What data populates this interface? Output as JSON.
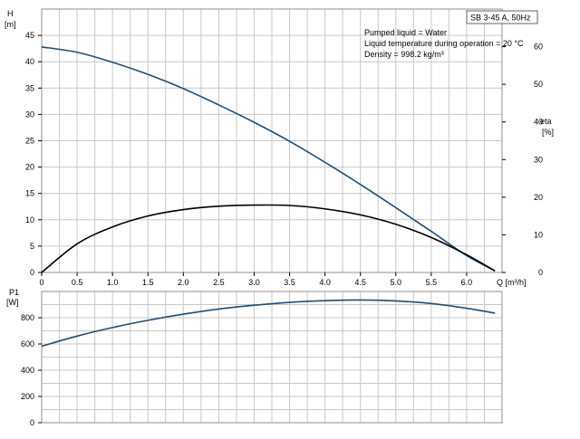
{
  "model_label": "SB 3-45 A, 50Hz",
  "info": {
    "line1": "Pumped liquid = Water",
    "line2": "Liquid temperature during operation = 20 °C",
    "line3": "Density = 998.2 kg/m³"
  },
  "colors": {
    "curve_blue": "#1f4e79",
    "curve_black": "#000000",
    "grid": "#c8c8c8"
  },
  "chart_data": [
    {
      "type": "line",
      "x_label": "Q [m³/h]",
      "y_label_left_line1": "H",
      "y_label_left_line2": "[m]",
      "y_label_right_line1": "eta",
      "y_label_right_line2": "[%]",
      "xlim": [
        0,
        6.5
      ],
      "ylim_left": [
        0,
        50
      ],
      "ylim_right": [
        0,
        70
      ],
      "x_ticks": [
        "0",
        "0.5",
        "1.0",
        "1.5",
        "2.0",
        "2.5",
        "3.0",
        "3.5",
        "4.0",
        "4.5",
        "5.0",
        "5.5",
        "6.0"
      ],
      "y_ticks_left": [
        "0",
        "5",
        "10",
        "15",
        "20",
        "25",
        "30",
        "35",
        "40",
        "45"
      ],
      "y_ticks_right": [
        "0",
        "10",
        "20",
        "30",
        "40",
        "50",
        "60"
      ],
      "grid": true,
      "series": [
        {
          "name": "",
          "axis": "left",
          "color": "#1f4e79",
          "x": [
            0,
            0.5,
            1.0,
            1.5,
            2.0,
            2.5,
            3.0,
            3.5,
            4.0,
            4.5,
            5.0,
            5.5,
            6.0,
            6.4
          ],
          "y": [
            42.8,
            41.8,
            39.9,
            37.6,
            34.9,
            31.8,
            28.5,
            24.9,
            20.9,
            16.7,
            12.3,
            7.8,
            3.2,
            0.3
          ]
        },
        {
          "name": "",
          "axis": "right",
          "color": "#000000",
          "x": [
            0,
            0.5,
            1.0,
            1.5,
            2.0,
            2.5,
            3.0,
            3.5,
            4.0,
            4.5,
            5.0,
            5.5,
            6.0,
            6.4
          ],
          "y": [
            0,
            7.6,
            12.1,
            15.0,
            16.7,
            17.6,
            17.9,
            17.8,
            16.9,
            15.3,
            12.8,
            9.3,
            4.7,
            0.4
          ]
        }
      ]
    },
    {
      "type": "line",
      "x_label": "",
      "y_label_left_line1": "P1",
      "y_label_left_line2": "[W]",
      "xlim": [
        0,
        6.5
      ],
      "ylim_left": [
        0,
        1000
      ],
      "y_ticks_left": [
        "0",
        "200",
        "400",
        "600",
        "800"
      ],
      "grid": true,
      "series": [
        {
          "name": "",
          "axis": "left",
          "color": "#1f4e79",
          "x": [
            0,
            0.5,
            1.0,
            1.5,
            2.0,
            2.5,
            3.0,
            3.5,
            4.0,
            4.5,
            5.0,
            5.5,
            6.0,
            6.4
          ],
          "y": [
            583,
            660,
            725,
            780,
            827,
            866,
            895,
            917,
            930,
            935,
            928,
            908,
            872,
            835
          ]
        }
      ]
    }
  ]
}
